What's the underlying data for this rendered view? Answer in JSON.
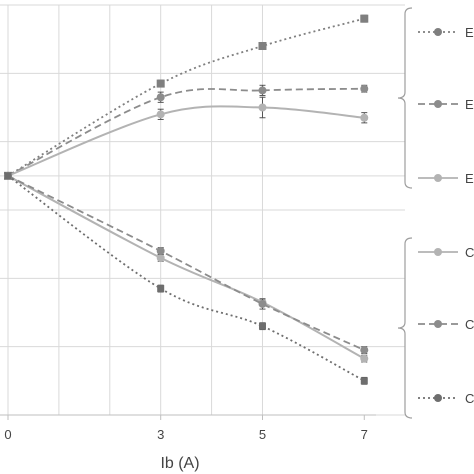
{
  "chart_data": {
    "type": "line",
    "xlabel": "Ib (A)",
    "ylabel": "",
    "title": "",
    "x": [
      0,
      3,
      5,
      7
    ],
    "xticks": [
      "0",
      "3",
      "5",
      "7"
    ],
    "xlim": [
      0,
      7.8
    ],
    "ylim": [
      -7,
      5
    ],
    "grid": true,
    "legend_position": "right",
    "legend_groups": [
      {
        "bracket": "top",
        "entries": [
          "E",
          "E",
          "E"
        ]
      },
      {
        "bracket": "bottom",
        "entries": [
          "C",
          "C",
          "C"
        ]
      }
    ],
    "series": [
      {
        "name": "E",
        "style": "dotted",
        "marker": "square",
        "color": "#7f7f7f",
        "values": [
          0,
          2.7,
          3.8,
          4.6
        ],
        "errors": [
          0,
          0.1,
          0.1,
          0.1
        ]
      },
      {
        "name": "E",
        "style": "dashed",
        "marker": "circle",
        "color": "#8c8c8c",
        "values": [
          0,
          2.3,
          2.5,
          2.55
        ],
        "errors": [
          0,
          0.15,
          0.15,
          0.1
        ]
      },
      {
        "name": "E",
        "style": "solid",
        "marker": "circle",
        "color": "#b3b3b3",
        "values": [
          0,
          1.8,
          2.0,
          1.7
        ],
        "errors": [
          0,
          0.15,
          0.3,
          0.15
        ]
      },
      {
        "name": "C",
        "style": "solid",
        "marker": "circle",
        "color": "#b3b3b3",
        "values": [
          0,
          -2.4,
          -3.7,
          -5.35
        ],
        "errors": [
          0,
          0.1,
          0.1,
          0.1
        ]
      },
      {
        "name": "C",
        "style": "dashed",
        "marker": "circle",
        "color": "#8c8c8c",
        "values": [
          0,
          -2.2,
          -3.75,
          -5.1
        ],
        "errors": [
          0,
          0.1,
          0.15,
          0.1
        ]
      },
      {
        "name": "C",
        "style": "dotted",
        "marker": "circle-square",
        "color": "#6e6e6e",
        "values": [
          0,
          -3.3,
          -4.4,
          -6.0
        ],
        "errors": [
          0,
          0.1,
          0.1,
          0.1
        ]
      }
    ]
  }
}
